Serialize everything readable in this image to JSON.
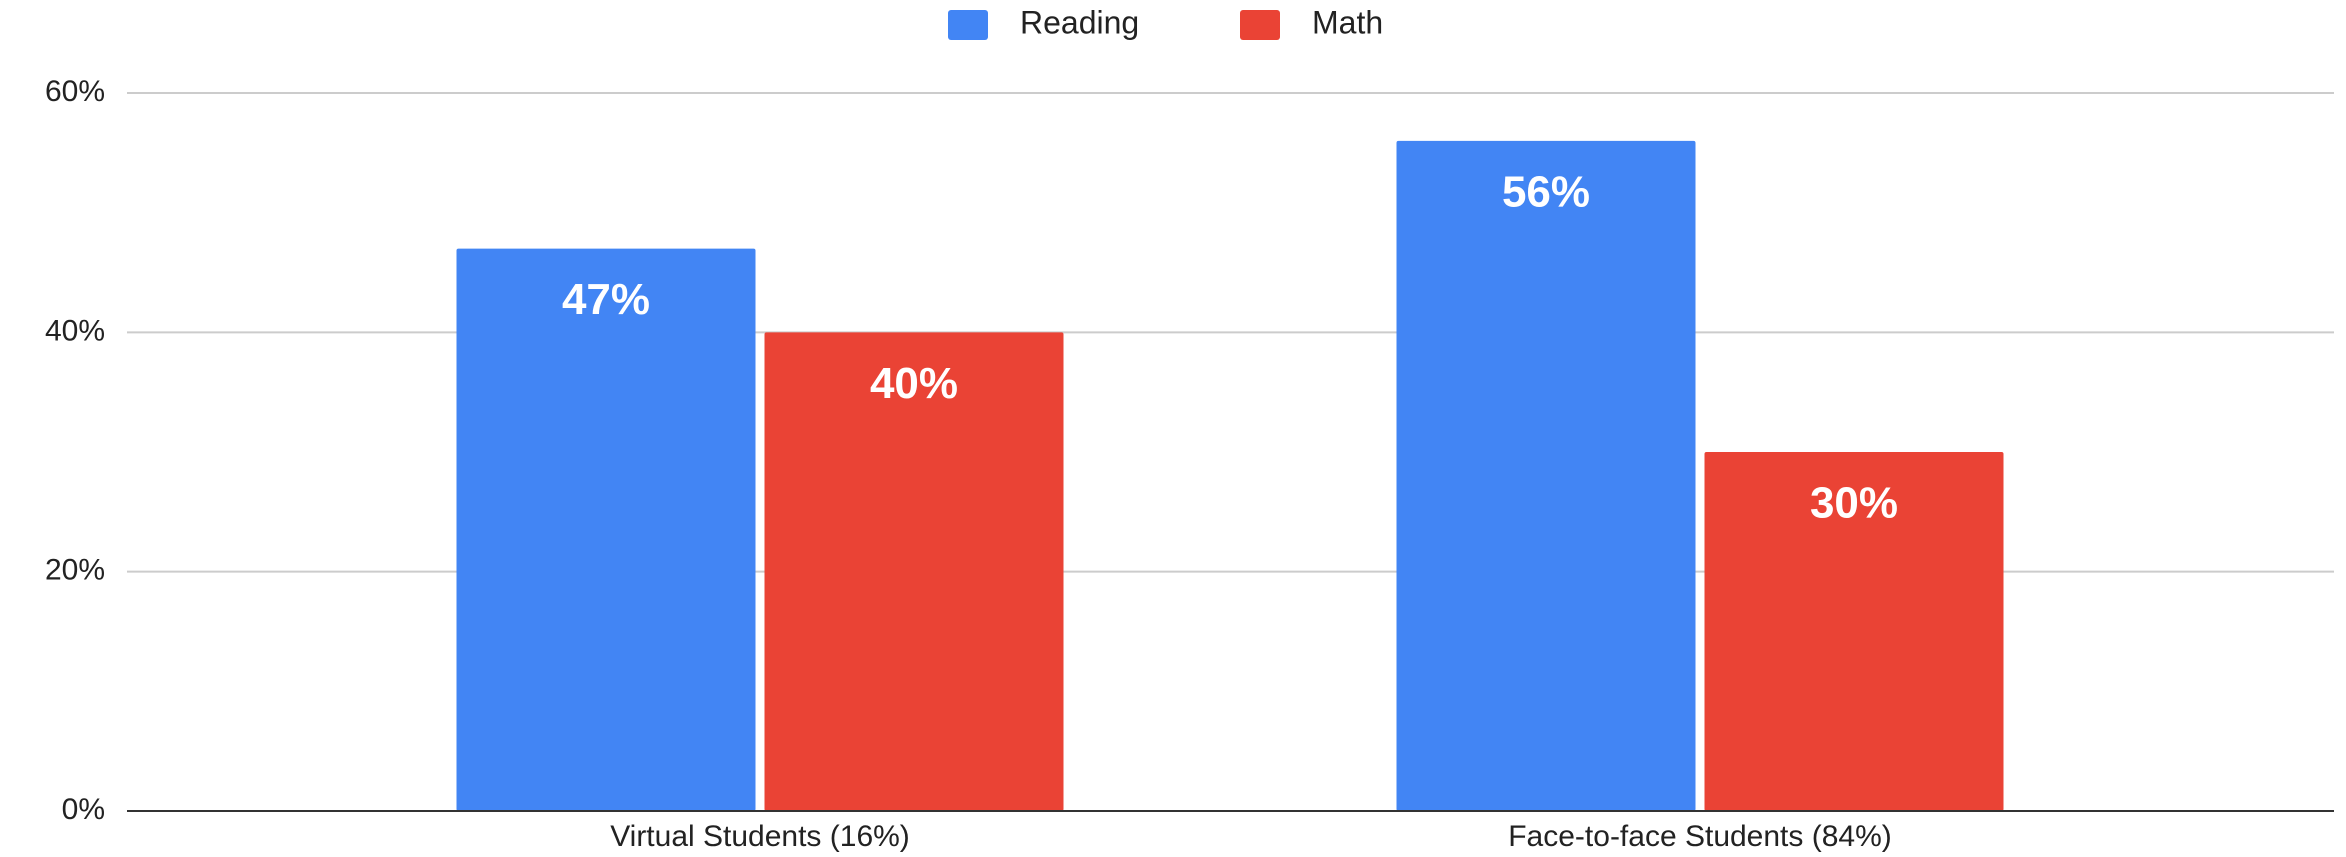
{
  "chart_data": {
    "type": "bar",
    "categories": [
      "Virtual Students (16%)",
      "Face-to-face Students (84%)"
    ],
    "series": [
      {
        "name": "Reading",
        "color": "#4285f4",
        "values": [
          47,
          56
        ],
        "value_labels": [
          "47%",
          "56%"
        ]
      },
      {
        "name": "Math",
        "color": "#ea4335",
        "values": [
          40,
          30
        ],
        "value_labels": [
          "40%",
          "30%"
        ]
      }
    ],
    "ylim": [
      0,
      60
    ],
    "yticks": [
      {
        "value": 0,
        "label": "0%"
      },
      {
        "value": 20,
        "label": "20%"
      },
      {
        "value": 40,
        "label": "40%"
      },
      {
        "value": 60,
        "label": "60%"
      }
    ],
    "grid": true,
    "legend": "top"
  }
}
